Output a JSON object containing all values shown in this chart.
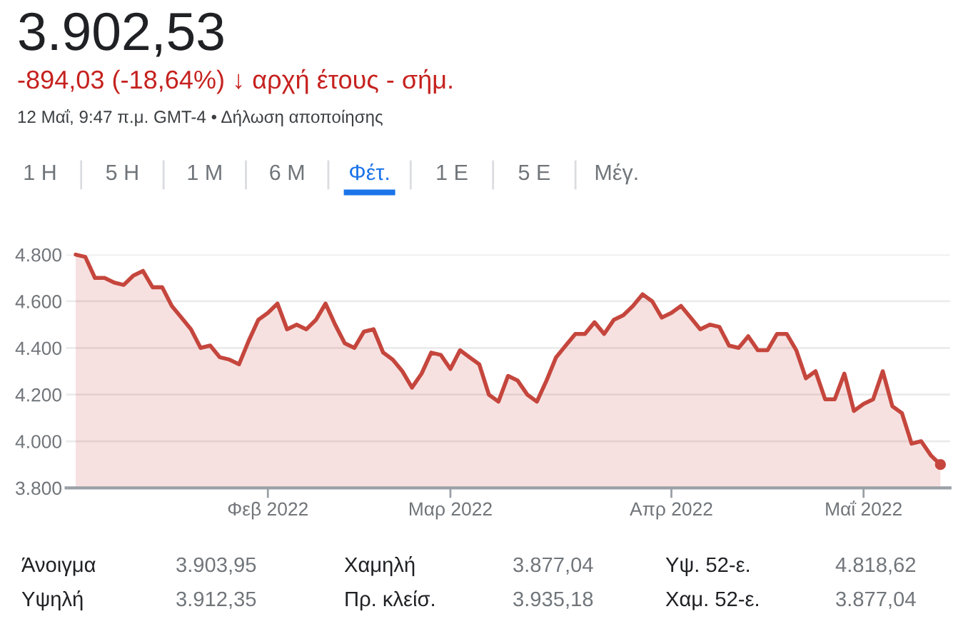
{
  "chart_data": {
    "type": "area",
    "title": "3.902,53",
    "subtitle": "-894,03 (-18,64%) ↓ αρχή έτους - σήμ.",
    "annotations": [
      "12 Μαΐ, 9:47 π.μ. GMT-4 • Δήλωση αποποίησης",
      "1 Η",
      "5 Η",
      "1 Μ",
      "6 Μ",
      "Φέτ.",
      "1 Ε",
      "5 Ε",
      "Μέγ.",
      "Άνοιγμα",
      "3.903,95",
      "Χαμηλή",
      "3.877,04",
      "Υψ. 52-ε.",
      "4.818,62",
      "Υψηλή",
      "3.912,35",
      "Πρ. κλείσ.",
      "3.935,18",
      "Χαμ. 52-ε.",
      "3.877,04"
    ],
    "categories": [
      null,
      null,
      null,
      null,
      null,
      null,
      null,
      null,
      null,
      null,
      null,
      null,
      null,
      null,
      null,
      null,
      null,
      null,
      null,
      null,
      "Φεβ 2022",
      null,
      null,
      null,
      null,
      null,
      null,
      null,
      null,
      null,
      null,
      null,
      null,
      null,
      null,
      null,
      null,
      null,
      null,
      "Μαρ 2022",
      null,
      null,
      null,
      null,
      null,
      null,
      null,
      null,
      null,
      null,
      null,
      null,
      null,
      null,
      null,
      null,
      null,
      null,
      null,
      null,
      null,
      null,
      "Απρ 2022",
      null,
      null,
      null,
      null,
      null,
      null,
      null,
      null,
      null,
      null,
      null,
      null,
      null,
      null,
      null,
      null,
      null,
      null,
      null,
      "Μαΐ 2022",
      null,
      null,
      null,
      null,
      null,
      null,
      null,
      null
    ],
    "series": [
      {
        "color": "#c5463d",
        "values": [
          4800,
          4790,
          4700,
          4700,
          4680,
          4670,
          4710,
          4730,
          4660,
          4660,
          4580,
          4530,
          4480,
          4400,
          4410,
          4360,
          4350,
          4330,
          4430,
          4520,
          4550,
          4590,
          4480,
          4500,
          4480,
          4520,
          4590,
          4500,
          4420,
          4400,
          4470,
          4480,
          4380,
          4350,
          4300,
          4230,
          4290,
          4380,
          4370,
          4310,
          4390,
          4360,
          4330,
          4200,
          4170,
          4280,
          4260,
          4200,
          4170,
          4260,
          4360,
          4410,
          4460,
          4460,
          4510,
          4460,
          4520,
          4540,
          4580,
          4630,
          4600,
          4530,
          4550,
          4580,
          4530,
          4480,
          4500,
          4490,
          4410,
          4400,
          4450,
          4390,
          4390,
          4460,
          4460,
          4390,
          4270,
          4300,
          4180,
          4180,
          4290,
          4130,
          4160,
          4180,
          4300,
          4150,
          4120,
          3990,
          4000,
          3940,
          3900
        ]
      },
      {
        "type": "scatter",
        "color": "#c5463d",
        "marker": "circle",
        "values": [
          null,
          null,
          null,
          null,
          null,
          null,
          null,
          null,
          null,
          null,
          null,
          null,
          null,
          null,
          null,
          null,
          null,
          null,
          null,
          null,
          null,
          null,
          null,
          null,
          null,
          null,
          null,
          null,
          null,
          null,
          null,
          null,
          null,
          null,
          null,
          null,
          null,
          null,
          null,
          null,
          null,
          null,
          null,
          null,
          null,
          null,
          null,
          null,
          null,
          null,
          null,
          null,
          null,
          null,
          null,
          null,
          null,
          null,
          null,
          null,
          null,
          null,
          null,
          null,
          null,
          null,
          null,
          null,
          null,
          null,
          null,
          null,
          null,
          null,
          null,
          null,
          null,
          null,
          null,
          null,
          null,
          null,
          null,
          null,
          null,
          null,
          null,
          null,
          null,
          null,
          3900
        ]
      }
    ],
    "ylim": [
      3800,
      4800
    ],
    "yticks": [
      {
        "value": 3800,
        "label": "3.800"
      },
      {
        "value": 4000,
        "label": "4.000"
      },
      {
        "value": 4200,
        "label": "4.200"
      },
      {
        "value": 4400,
        "label": "4.400"
      },
      {
        "value": 4600,
        "label": "4.600"
      },
      {
        "value": 4800,
        "label": "4.800"
      }
    ],
    "grid": "y"
  }
}
